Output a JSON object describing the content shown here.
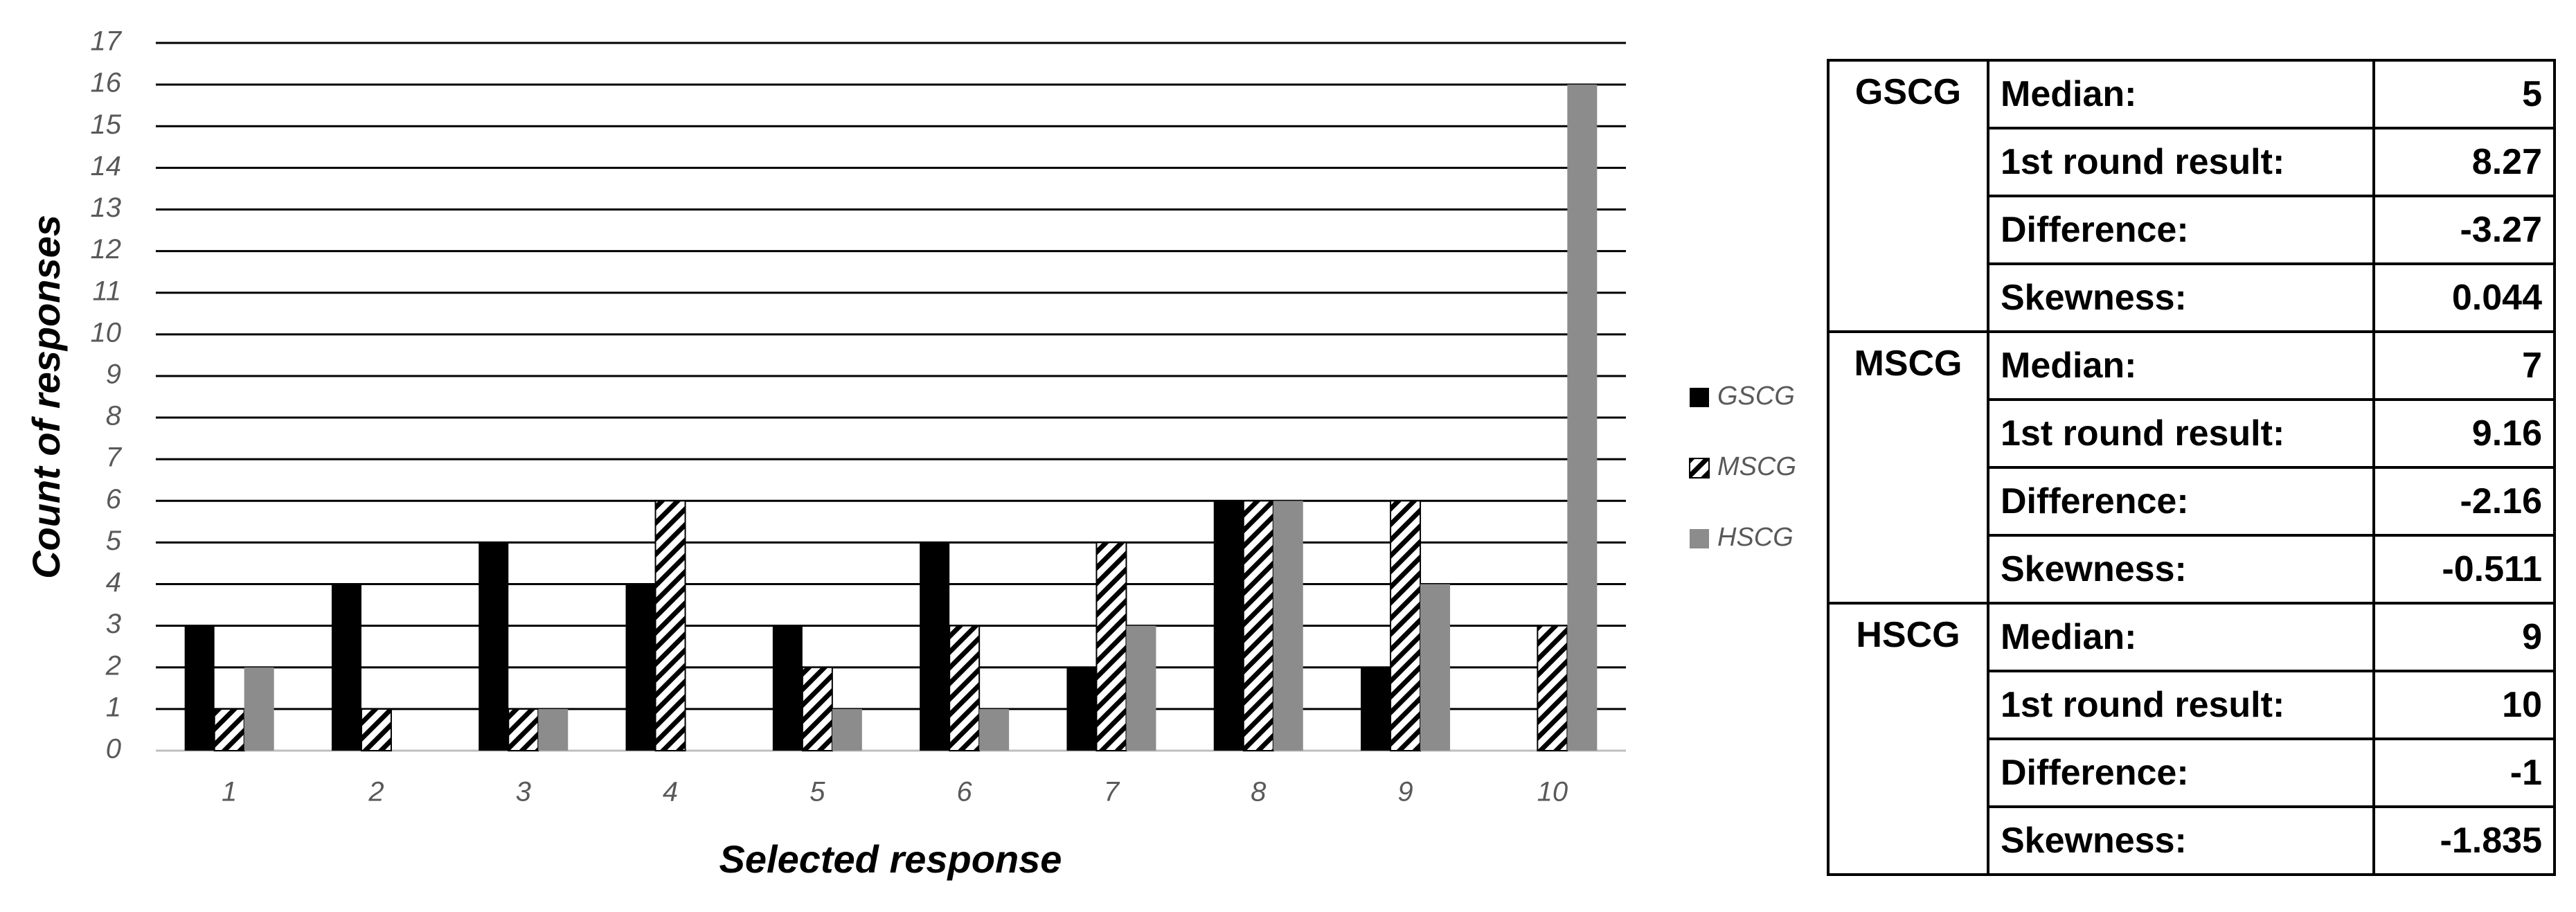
{
  "chart_data": {
    "type": "bar",
    "x_label": "Selected response",
    "y_label": "Count of responses",
    "categories": [
      "1",
      "2",
      "3",
      "4",
      "5",
      "6",
      "7",
      "8",
      "9",
      "10"
    ],
    "series": [
      {
        "name": "GSCG",
        "color": "#000000",
        "values": [
          3,
          4,
          5,
          4,
          3,
          5,
          2,
          6,
          2,
          0
        ]
      },
      {
        "name": "MSCG",
        "color": "#000000",
        "pattern": "hatch",
        "values": [
          1,
          1,
          1,
          6,
          2,
          3,
          5,
          6,
          6,
          3
        ]
      },
      {
        "name": "HSCG",
        "color": "#8c8c8c",
        "values": [
          2,
          0,
          1,
          0,
          1,
          1,
          3,
          6,
          4,
          16
        ]
      }
    ],
    "ylim": [
      0,
      17
    ],
    "yticks": [
      0,
      1,
      2,
      3,
      4,
      5,
      6,
      7,
      8,
      9,
      10,
      11,
      12,
      13,
      14,
      15,
      16,
      17
    ],
    "grid": true,
    "legend": "right"
  },
  "table": {
    "groups": [
      {
        "name": "GSCG",
        "rows": [
          [
            "Median:",
            5
          ],
          [
            "1st round result:",
            8.27
          ],
          [
            "Difference:",
            -3.27
          ],
          [
            "Skewness:",
            0.044
          ]
        ]
      },
      {
        "name": "MSCG",
        "rows": [
          [
            "Median:",
            7
          ],
          [
            "1st round result:",
            9.16
          ],
          [
            "Difference:",
            -2.16
          ],
          [
            "Skewness:",
            -0.511
          ]
        ]
      },
      {
        "name": "HSCG",
        "rows": [
          [
            "Median:",
            9
          ],
          [
            "1st round result:",
            10
          ],
          [
            "Difference:",
            -1
          ],
          [
            "Skewness:",
            -1.835
          ]
        ]
      }
    ]
  }
}
